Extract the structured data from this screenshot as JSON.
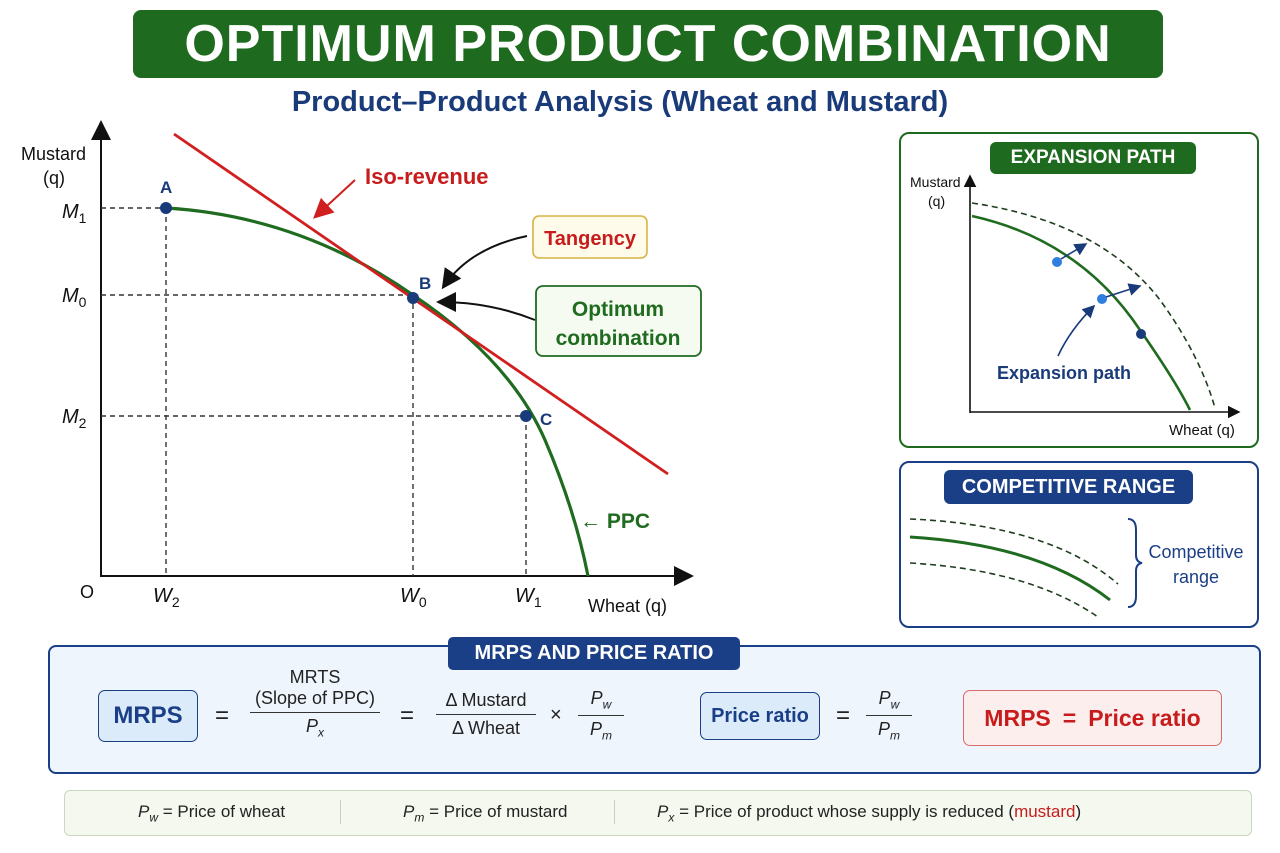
{
  "header": {
    "title": "OPTIMUM PRODUCT COMBINATION",
    "subtitle": "Product–Product Analysis (Wheat and Mustard)"
  },
  "main_chart": {
    "y_axis_label_line1": "Mustard",
    "y_axis_label_line2": "(q)",
    "x_axis_label": "Wheat (q)",
    "origin_label": "O",
    "y_ticks": [
      "M1",
      "M0",
      "M2"
    ],
    "x_ticks": [
      "W2",
      "W0",
      "W1"
    ],
    "points": [
      {
        "label": "A",
        "wheat": "W2",
        "mustard": "M1"
      },
      {
        "label": "B",
        "wheat": "W0",
        "mustard": "M0"
      },
      {
        "label": "C",
        "wheat": "W1",
        "mustard": "M2"
      }
    ],
    "isorevenue_label": "Iso-revenue",
    "tangency_label": "Tangency",
    "optimum_label_line1": "Optimum",
    "optimum_label_line2": "combination",
    "ppc_label": "← PPC"
  },
  "expansion_panel": {
    "heading": "EXPANSION PATH",
    "y_label_line1": "Mustard",
    "y_label_line2": "(q)",
    "x_label": "Wheat (q)",
    "path_label": "Expansion path"
  },
  "competitive_panel": {
    "heading": "COMPETITIVE RANGE",
    "range_label_line1": "Competitive",
    "range_label_line2": "range"
  },
  "formula": {
    "heading": "MRPS AND PRICE RATIO",
    "mrps": "MRPS",
    "eq": "=",
    "mrts_line1": "MRTS",
    "mrts_line2": "(Slope of PPC)",
    "px": "Px",
    "delta_mustard": "Δ Mustard",
    "delta_wheat": "Δ Wheat",
    "times": "×",
    "pw": "Pw",
    "pm": "Pm",
    "price_ratio": "Price ratio",
    "result_left": "MRPS",
    "result_eq": "=",
    "result_right": "Price ratio"
  },
  "legend": {
    "pw_def": "= Price of wheat",
    "pm_def": "= Price of mustard",
    "px_def": "= Price of product whose supply is reduced (",
    "px_highlight": "mustard",
    "px_close": ")"
  },
  "colors": {
    "green_dark": "#1e6a1e",
    "navy": "#1b3f86",
    "red": "#d11f1f",
    "curve_green": "#1f6b1f"
  }
}
